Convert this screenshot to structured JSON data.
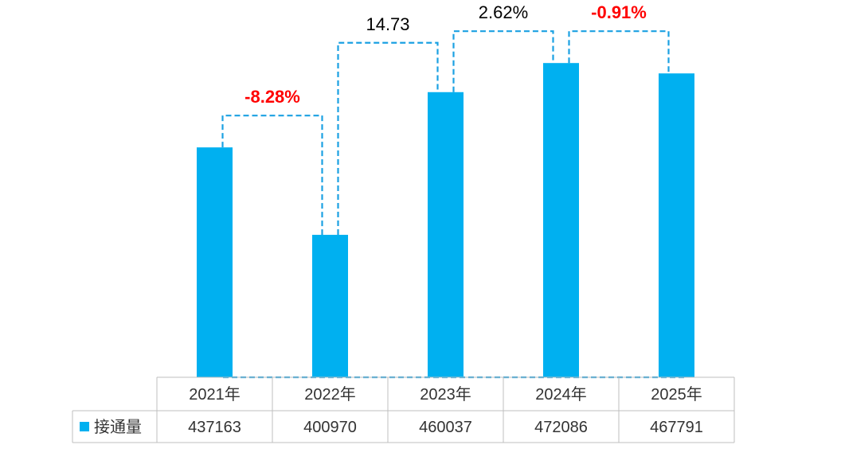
{
  "chart_data": {
    "type": "bar",
    "categories": [
      "2021年",
      "2022年",
      "2023年",
      "2024年",
      "2025年"
    ],
    "series": [
      {
        "name": "接通量",
        "values": [
          437163,
          400970,
          460037,
          472086,
          467791
        ],
        "color": "#00B0F0"
      }
    ],
    "ylim": [
      342000,
      485000
    ],
    "annotations": [
      {
        "from": "2021年",
        "to": "2022年",
        "text": "-8.28%",
        "color": "#FF0000",
        "bold": true
      },
      {
        "from": "2022年",
        "to": "2023年",
        "text": "14.73",
        "color": "#000000",
        "bold": false
      },
      {
        "from": "2023年",
        "to": "2024年",
        "text": "2.62%",
        "color": "#000000",
        "bold": false
      },
      {
        "from": "2024年",
        "to": "2025年",
        "text": "-0.91%",
        "color": "#FF0000",
        "bold": true
      }
    ],
    "connector_color": "#1BA1E2",
    "table_border_color": "#BFBFBF"
  }
}
